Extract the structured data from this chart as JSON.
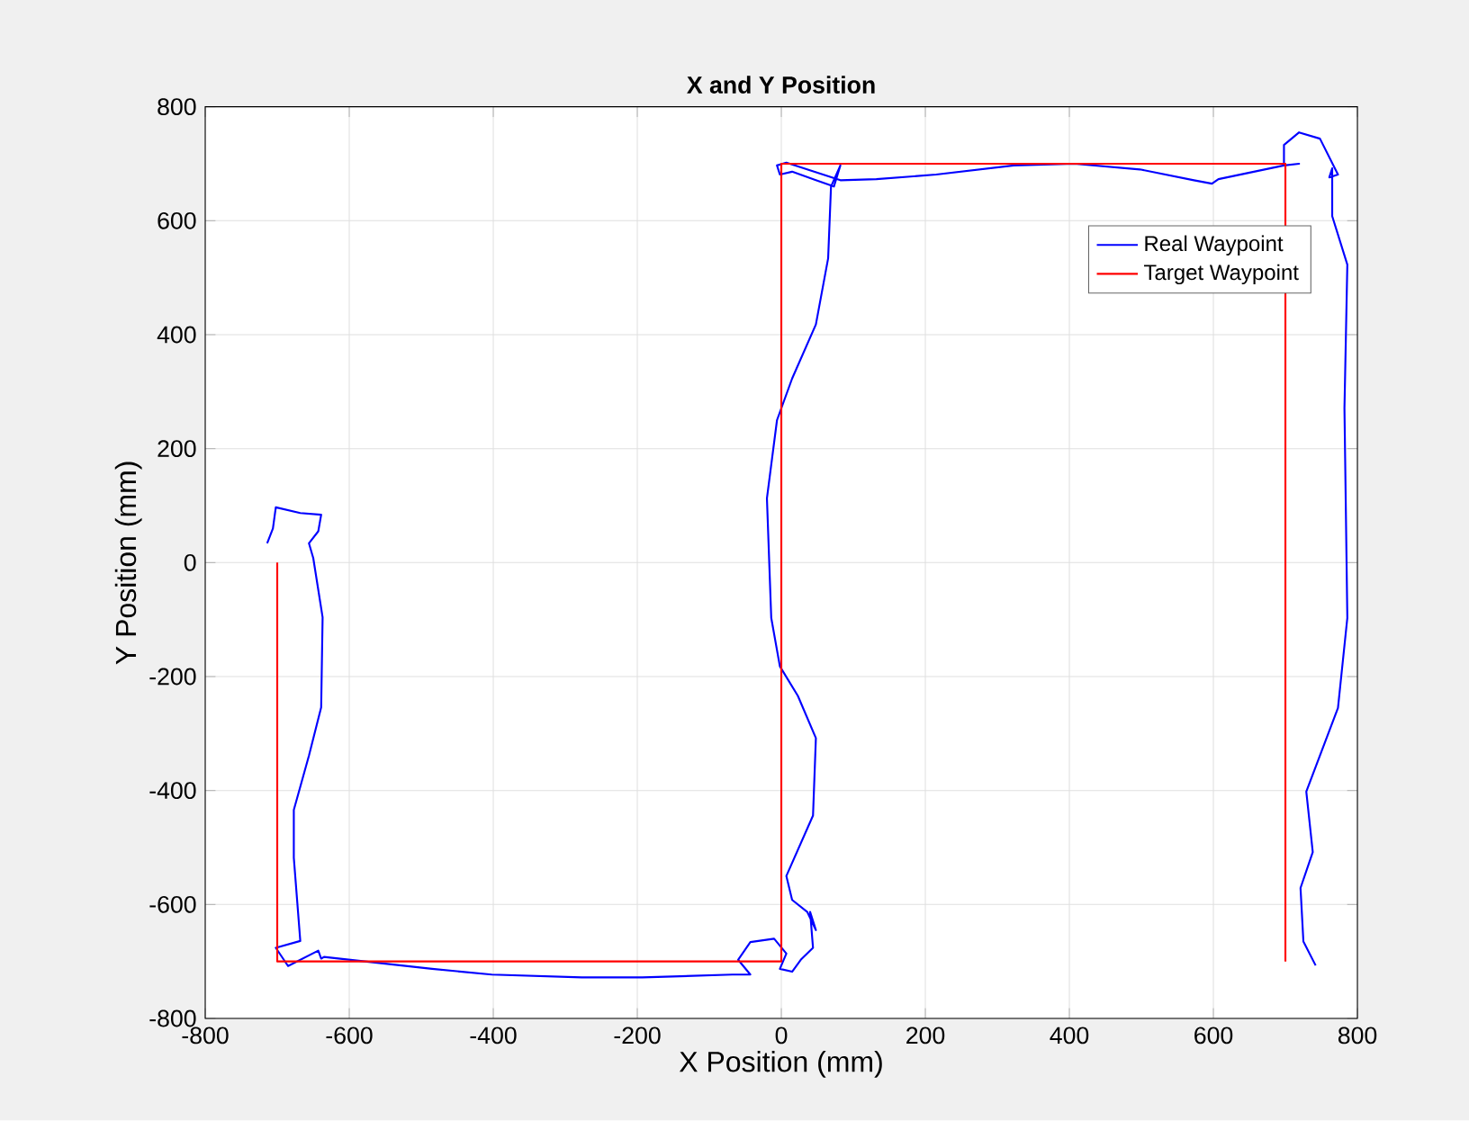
{
  "chart_data": {
    "type": "line",
    "title": "X and Y Position",
    "xlabel": "X Position (mm)",
    "ylabel": "Y Position (mm)",
    "xlim": [
      -800,
      800
    ],
    "ylim": [
      -800,
      800
    ],
    "xticks": [
      -800,
      -600,
      -400,
      -200,
      0,
      200,
      400,
      600,
      800
    ],
    "yticks": [
      -800,
      -600,
      -400,
      -200,
      0,
      200,
      400,
      600,
      800
    ],
    "grid": true,
    "legend": "top right",
    "series": [
      {
        "name": "Real Waypoint",
        "color": "#0000ff",
        "x": [
          -714,
          -706,
          -702,
          -668,
          -639,
          -643,
          -656,
          -650,
          -637,
          -639,
          -656,
          -677,
          -677,
          -668,
          -702,
          -685,
          -643,
          -639,
          -635,
          -485,
          -402,
          -277,
          -193,
          -68,
          -43,
          -60,
          -43,
          -10,
          7,
          -2,
          15,
          27,
          44,
          40,
          48,
          36,
          15,
          7,
          44,
          48,
          23,
          -2,
          -14,
          -20,
          -6,
          15,
          48,
          65,
          69,
          82,
          73,
          48,
          15,
          -2,
          -6,
          7,
          82,
          132,
          215,
          323,
          407,
          498,
          573,
          598,
          607,
          698,
          719,
          698,
          698,
          719,
          748,
          773,
          761,
          765,
          765,
          786,
          782,
          786,
          773,
          729,
          738,
          721,
          725,
          742
        ],
        "values": [
          34,
          60,
          97,
          87,
          84,
          55,
          34,
          8,
          -96,
          -254,
          -339,
          -434,
          -518,
          -664,
          -676,
          -708,
          -681,
          -695,
          -692,
          -713,
          -723,
          -728,
          -728,
          -723,
          -723,
          -697,
          -666,
          -660,
          -686,
          -713,
          -718,
          -697,
          -676,
          -613,
          -645,
          -613,
          -592,
          -550,
          -444,
          -308,
          -234,
          -182,
          -97,
          113,
          250,
          323,
          418,
          534,
          660,
          697,
          660,
          671,
          686,
          681,
          697,
          702,
          671,
          673,
          681,
          697,
          700,
          690,
          671,
          665,
          673,
          697,
          700,
          697,
          733,
          755,
          744,
          681,
          676,
          692,
          608,
          523,
          271,
          -97,
          -255,
          -402,
          -508,
          -571,
          -665,
          -707
        ]
      },
      {
        "name": "Target Waypoint",
        "color": "#ff0000",
        "x": [
          -700,
          -700,
          0,
          0,
          700,
          700
        ],
        "values": [
          0,
          -700,
          -700,
          700,
          700,
          -700
        ]
      }
    ]
  }
}
